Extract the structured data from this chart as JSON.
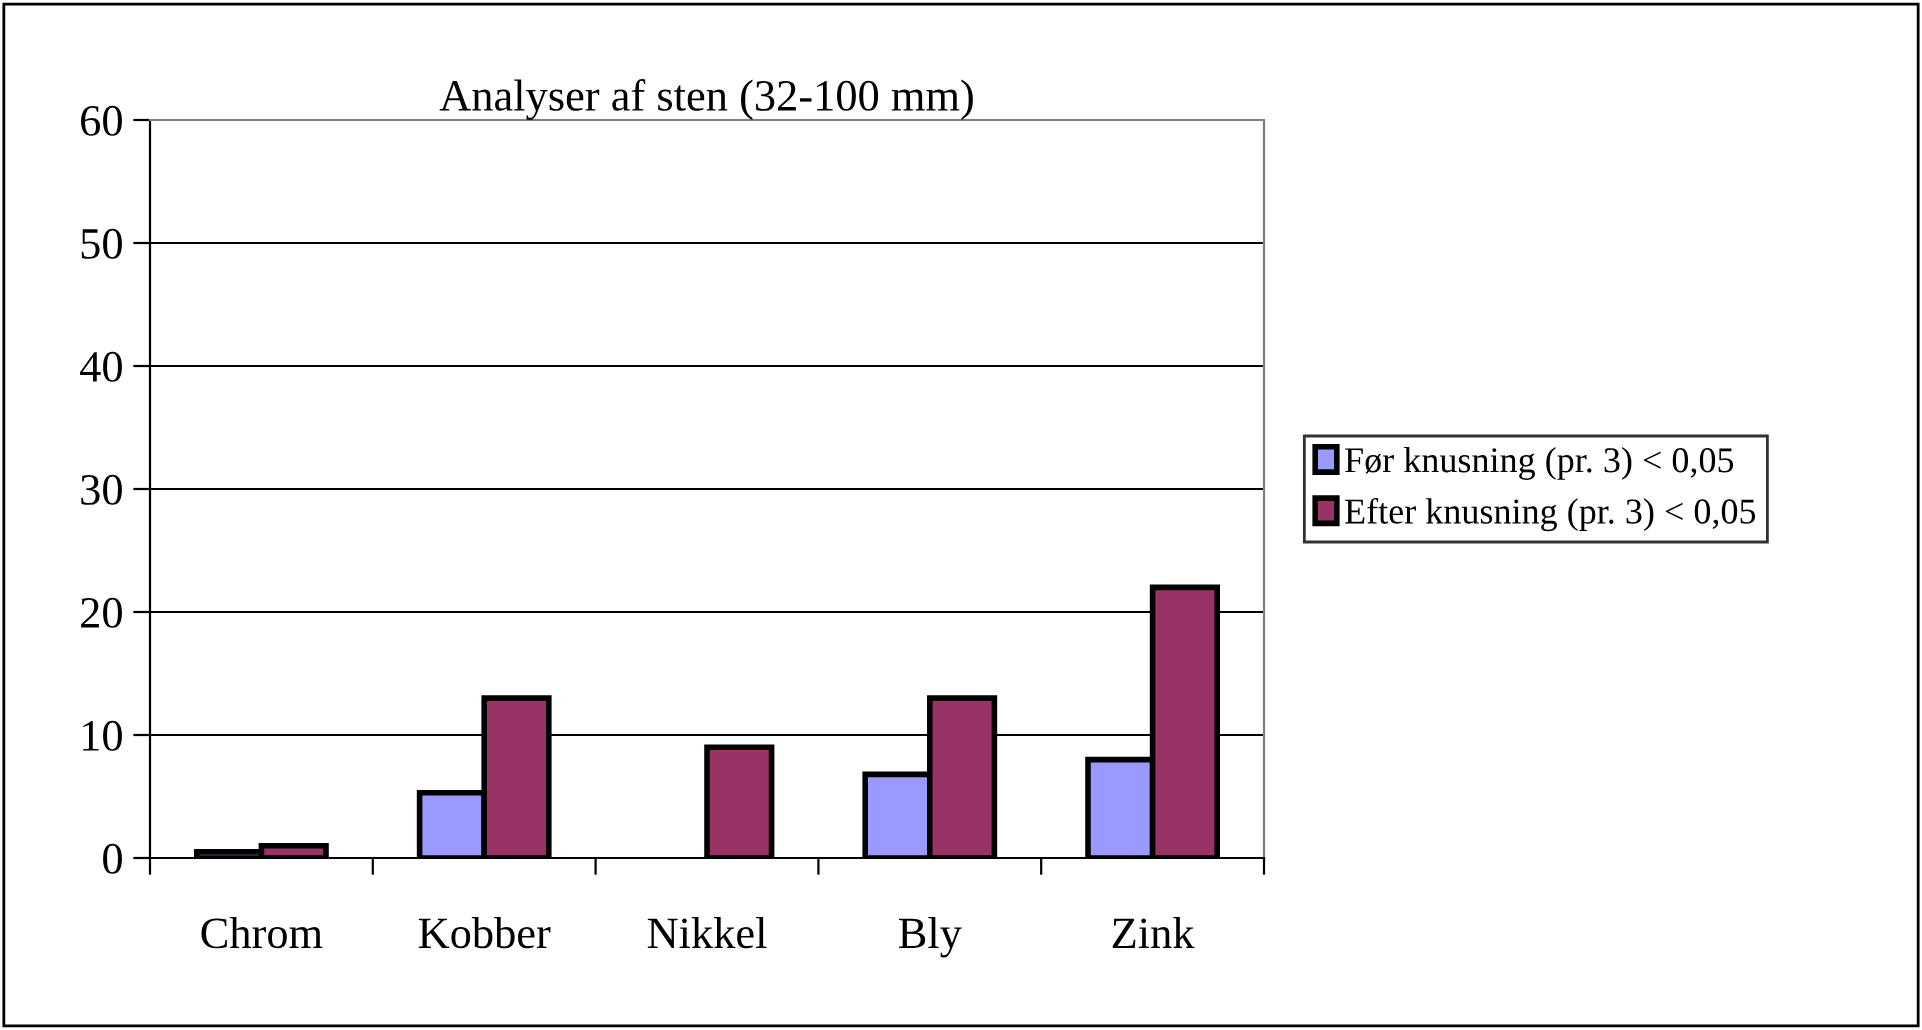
{
  "chart_data": {
    "type": "bar",
    "title": "Analyser af sten (32-100 mm)",
    "categories": [
      "Chrom",
      "Kobber",
      "Nikkel",
      "Bly",
      "Zink"
    ],
    "series": [
      {
        "name": "Før knusning (pr. 3) < 0,05",
        "color": "#9999ff",
        "values": [
          0.5,
          5.3,
          null,
          6.8,
          8
        ]
      },
      {
        "name": "Efter knusning (pr. 3) < 0,05",
        "color": "#993366",
        "values": [
          1,
          13,
          9,
          13,
          22
        ]
      }
    ],
    "ylim": [
      0,
      60
    ],
    "yticks": [
      0,
      10,
      20,
      30,
      40,
      50,
      60
    ],
    "grid": "y",
    "legend": "right"
  }
}
